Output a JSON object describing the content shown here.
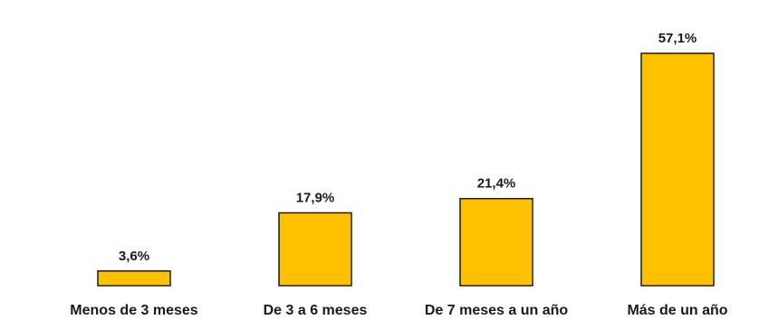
{
  "chart_data": {
    "type": "bar",
    "categories": [
      "Menos de 3 meses",
      "De 3 a 6 meses",
      "De 7 meses a un año",
      "Más de un año"
    ],
    "values": [
      3.6,
      17.9,
      21.4,
      57.1
    ],
    "value_labels": [
      "3,6%",
      "17,9%",
      "21,4%",
      "57,1%"
    ],
    "title": "",
    "xlabel": "",
    "ylabel": "",
    "ylim": [
      0,
      60
    ],
    "grid": false,
    "legend": "none",
    "bar_color": "#FFC000",
    "bar_edge_color": "#1a1a1a"
  }
}
